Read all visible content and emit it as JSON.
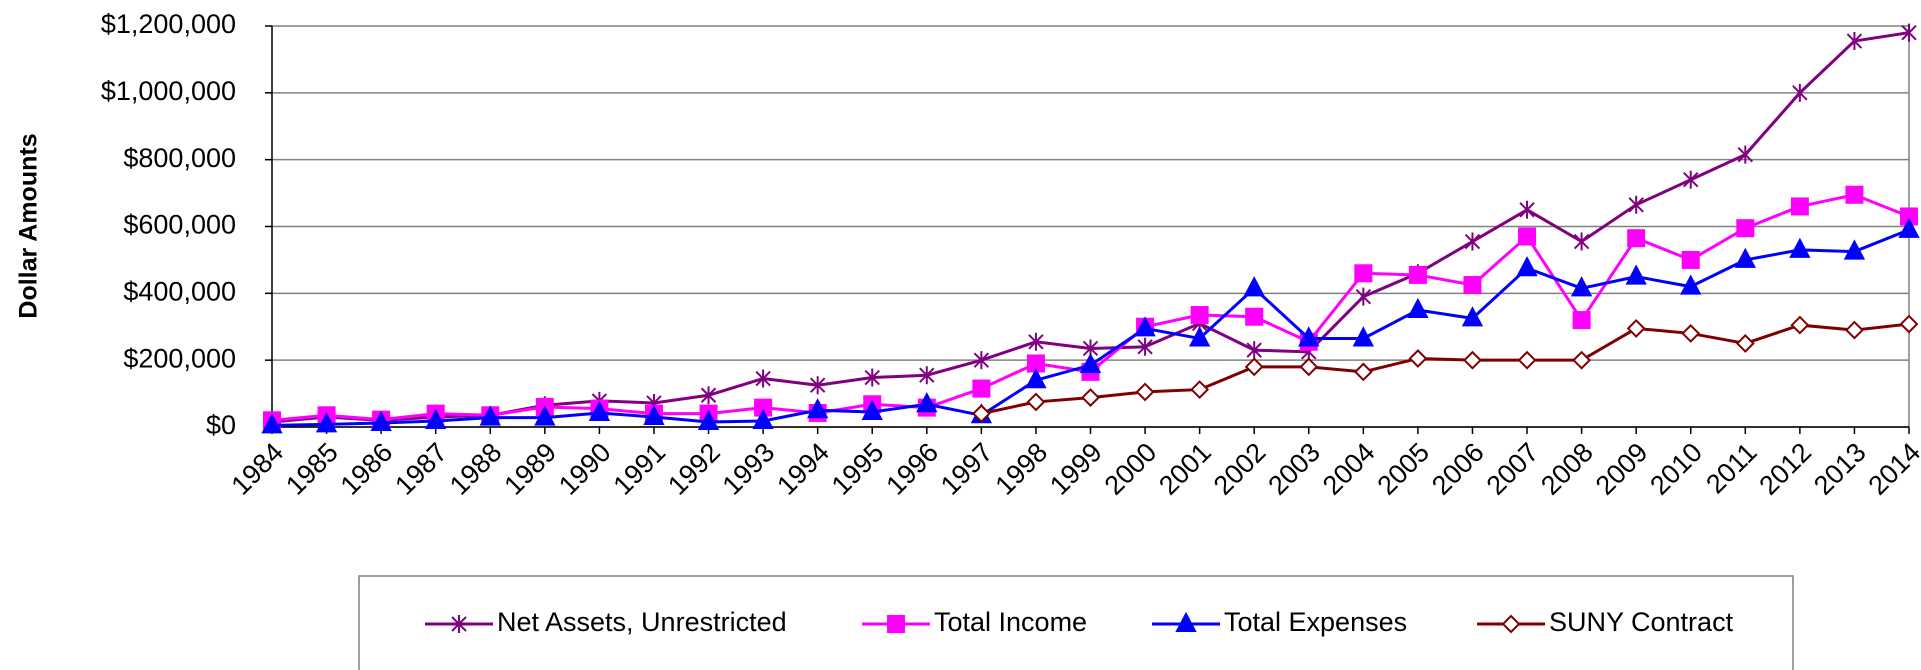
{
  "chart_data": {
    "type": "line",
    "y_label": "Dollar Amounts",
    "categories": [
      "1984",
      "1985",
      "1986",
      "1987",
      "1988",
      "1989",
      "1990",
      "1991",
      "1992",
      "1993",
      "1994",
      "1995",
      "1996",
      "1997",
      "1998",
      "1999",
      "2000",
      "2001",
      "2002",
      "2003",
      "2004",
      "2005",
      "2006",
      "2007",
      "2008",
      "2009",
      "2010",
      "2011",
      "2012",
      "2013",
      "2014"
    ],
    "series": [
      {
        "name": "Net Assets, Unrestricted",
        "color": "#800080",
        "marker": "x",
        "values": [
          15000,
          30000,
          20000,
          30000,
          35000,
          65000,
          78000,
          72000,
          95000,
          145000,
          125000,
          148000,
          155000,
          200000,
          255000,
          235000,
          240000,
          310000,
          230000,
          225000,
          390000,
          460000,
          555000,
          650000,
          555000,
          665000,
          740000,
          815000,
          1000000,
          1155000,
          1180000
        ]
      },
      {
        "name": "Total Income",
        "color": "#ff00ff",
        "marker": "square",
        "values": [
          20000,
          35000,
          22000,
          40000,
          35000,
          60000,
          55000,
          40000,
          40000,
          58000,
          42000,
          68000,
          58000,
          115000,
          190000,
          165000,
          300000,
          335000,
          330000,
          255000,
          460000,
          455000,
          425000,
          570000,
          320000,
          565000,
          500000,
          595000,
          660000,
          695000,
          630000
        ]
      },
      {
        "name": "Total Expenses",
        "color": "#0000ff",
        "marker": "triangle",
        "values": [
          5000,
          8000,
          12000,
          18000,
          28000,
          28000,
          42000,
          30000,
          15000,
          18000,
          50000,
          45000,
          68000,
          35000,
          140000,
          185000,
          295000,
          265000,
          415000,
          265000,
          265000,
          350000,
          325000,
          475000,
          415000,
          450000,
          420000,
          500000,
          530000,
          525000,
          590000
        ]
      },
      {
        "name": "SUNY Contract",
        "color": "#800000",
        "marker": "diamond",
        "values": [
          null,
          null,
          null,
          null,
          null,
          null,
          null,
          null,
          null,
          null,
          null,
          null,
          null,
          40000,
          75000,
          88000,
          105000,
          112000,
          180000,
          180000,
          165000,
          205000,
          200000,
          200000,
          200000,
          295000,
          280000,
          250000,
          305000,
          290000,
          308000
        ]
      }
    ],
    "ylim": [
      0,
      1200000
    ],
    "yticks": [
      {
        "value": 0,
        "label": "$0"
      },
      {
        "value": 200000,
        "label": "$200,000"
      },
      {
        "value": 400000,
        "label": "$400,000"
      },
      {
        "value": 600000,
        "label": "$600,000"
      },
      {
        "value": 800000,
        "label": "$800,000"
      },
      {
        "value": 1000000,
        "label": "$1,000,000"
      },
      {
        "value": 1200000,
        "label": "$1,200,000"
      }
    ],
    "grid": true,
    "legend": "bottom"
  }
}
